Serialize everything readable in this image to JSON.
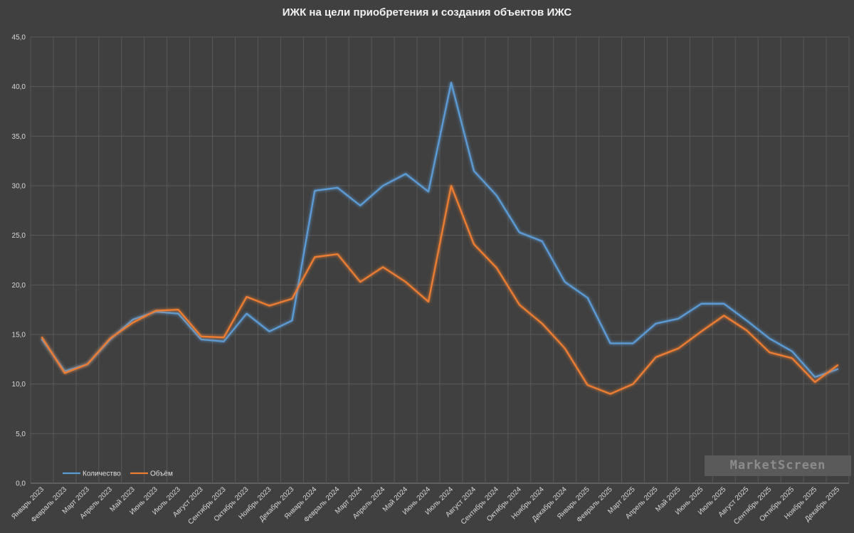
{
  "chart_data": {
    "type": "line",
    "title": "ИЖК на цели приобретения и создания объектов ИЖС",
    "xlabel": "",
    "ylabel": "",
    "ylim": [
      0,
      45
    ],
    "yticks": [
      "0,0",
      "5,0",
      "10,0",
      "15,0",
      "20,0",
      "25,0",
      "30,0",
      "35,0",
      "40,0",
      "45,0"
    ],
    "grid": true,
    "legend": "bottom-left",
    "categories": [
      "Январь 2023",
      "Февраль 2023",
      "Март 2023",
      "Апрель 2023",
      "Май 2023",
      "Июнь 2023",
      "Июль 2023",
      "Август 2023",
      "Сентябрь 2023",
      "Октябрь 2023",
      "Ноябрь 2023",
      "Декабрь 2023",
      "Январь 2024",
      "Февраль 2024",
      "Март 2024",
      "Апрель 2024",
      "Май 2024",
      "Июнь 2024",
      "Июль 2024",
      "Август 2024",
      "Сентябрь 2024",
      "Октябрь 2024",
      "Ноябрь 2024",
      "Декабрь 2024",
      "Январь 2025",
      "Февраль 2025",
      "Март 2025",
      "Апрель 2025",
      "Май 2025",
      "Июнь 2025",
      "Июль 2025",
      "Август 2025",
      "Сентябрь 2025",
      "Октябрь 2025",
      "Ноябрь 2025",
      "Декабрь 2025"
    ],
    "series": [
      {
        "name": "Количество",
        "color": "#5b9bd5",
        "values": [
          14.5,
          11.3,
          12.0,
          14.5,
          16.5,
          17.3,
          17.1,
          14.5,
          14.3,
          17.1,
          15.3,
          16.4,
          29.5,
          29.8,
          28.0,
          30.0,
          31.2,
          29.4,
          40.4,
          31.5,
          29.0,
          25.3,
          24.4,
          20.3,
          18.7,
          14.1,
          14.1,
          16.1,
          16.6,
          18.1,
          18.1,
          16.4,
          14.6,
          13.3,
          10.7,
          11.5
        ]
      },
      {
        "name": "Объём",
        "color": "#ed7d31",
        "values": [
          14.7,
          11.1,
          12.0,
          14.6,
          16.2,
          17.4,
          17.5,
          14.8,
          14.7,
          18.8,
          17.9,
          18.6,
          22.8,
          23.1,
          20.3,
          21.8,
          20.3,
          18.3,
          30.0,
          24.1,
          21.7,
          18.0,
          16.1,
          13.6,
          9.9,
          9.0,
          10.0,
          12.7,
          13.6,
          15.3,
          16.9,
          15.4,
          13.2,
          12.6,
          10.2,
          11.9
        ]
      }
    ]
  },
  "watermark": "MarketScreen"
}
